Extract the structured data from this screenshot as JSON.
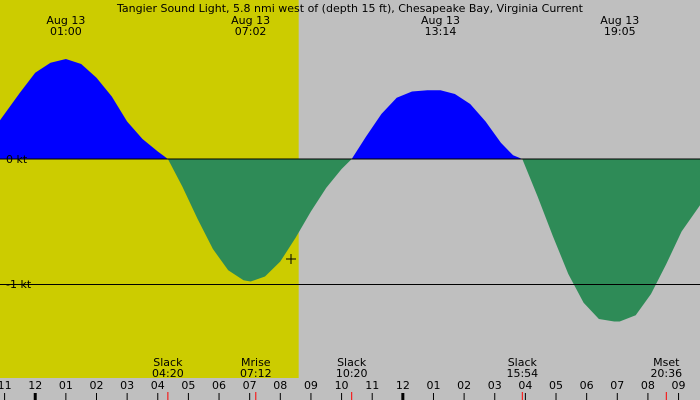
{
  "chart_data": {
    "type": "area",
    "title": "Tangier Sound Light, 5.8 nmi west of (depth 15 ft), Chesapeake Bay, Virginia Current",
    "ylabel": "",
    "xlabel": "",
    "y_tick_labels": [
      {
        "value": 0,
        "label": "0 kt"
      },
      {
        "value": -1,
        "label": "-1 kt"
      }
    ],
    "ylim": [
      -1.6,
      0.8
    ],
    "x_range_hours": [
      10.85,
      33.7
    ],
    "daylight_hours": [
      6.9,
      20.6
    ],
    "x_ticks": [
      {
        "hour": 11,
        "label": "11"
      },
      {
        "hour": 12,
        "label": "12"
      },
      {
        "hour": 13,
        "label": "01"
      },
      {
        "hour": 14,
        "label": "02"
      },
      {
        "hour": 15,
        "label": "03"
      },
      {
        "hour": 16,
        "label": "04"
      },
      {
        "hour": 17,
        "label": "05"
      },
      {
        "hour": 18,
        "label": "06"
      },
      {
        "hour": 19,
        "label": "07"
      },
      {
        "hour": 20,
        "label": "08"
      },
      {
        "hour": 21,
        "label": "09"
      },
      {
        "hour": 22,
        "label": "10"
      },
      {
        "hour": 23,
        "label": "11"
      },
      {
        "hour": 24,
        "label": "12"
      },
      {
        "hour": 25,
        "label": "01"
      },
      {
        "hour": 26,
        "label": "02"
      },
      {
        "hour": 27,
        "label": "03"
      },
      {
        "hour": 28,
        "label": "04"
      },
      {
        "hour": 29,
        "label": "05"
      },
      {
        "hour": 30,
        "label": "06"
      },
      {
        "hour": 31,
        "label": "07"
      },
      {
        "hour": 32,
        "label": "08"
      },
      {
        "hour": 33,
        "label": "09"
      }
    ],
    "extremes": [
      {
        "hour": 13.0,
        "value": 0.8,
        "date": "Aug 13",
        "time": "01:00"
      },
      {
        "hour": 19.03,
        "value": -0.98,
        "date": "Aug 13",
        "time": "07:02"
      },
      {
        "hour": 25.23,
        "value": 0.55,
        "date": "Aug 13",
        "time": "13:14"
      },
      {
        "hour": 31.08,
        "value": -1.3,
        "date": "Aug 13",
        "time": "19:05"
      }
    ],
    "events": [
      {
        "hour": 16.33,
        "label": "Slack",
        "time": "04:20"
      },
      {
        "hour": 19.2,
        "label": "Mrise",
        "time": "07:12"
      },
      {
        "hour": 22.33,
        "label": "Slack",
        "time": "10:20"
      },
      {
        "hour": 27.9,
        "label": "Slack",
        "time": "15:54"
      },
      {
        "hour": 32.6,
        "label": "Mset",
        "time": "20:36"
      }
    ],
    "series": [
      {
        "x": [
          10.85,
          11.5,
          12.0,
          12.5,
          13.0,
          13.5,
          14.0,
          14.5,
          15.0,
          15.5,
          16.0,
          16.33,
          16.8,
          17.3,
          17.8,
          18.3,
          18.8,
          19.03,
          19.5,
          20.0,
          20.5,
          21.0,
          21.5,
          22.0,
          22.33,
          22.8,
          23.3,
          23.8,
          24.3,
          24.8,
          25.23,
          25.7,
          26.2,
          26.7,
          27.2,
          27.6,
          27.9,
          28.4,
          28.9,
          29.4,
          29.9,
          30.4,
          30.9,
          31.08,
          31.6,
          32.1,
          32.6,
          33.1,
          33.7
        ],
        "values": [
          0.31,
          0.53,
          0.69,
          0.77,
          0.8,
          0.76,
          0.65,
          0.5,
          0.3,
          0.16,
          0.06,
          0.0,
          -0.22,
          -0.48,
          -0.72,
          -0.89,
          -0.97,
          -0.98,
          -0.94,
          -0.82,
          -0.63,
          -0.42,
          -0.23,
          -0.08,
          0.0,
          0.18,
          0.36,
          0.49,
          0.54,
          0.55,
          0.55,
          0.52,
          0.44,
          0.3,
          0.13,
          0.03,
          0.0,
          -0.3,
          -0.62,
          -0.92,
          -1.15,
          -1.28,
          -1.3,
          -1.3,
          -1.25,
          -1.08,
          -0.84,
          -0.58,
          -0.37
        ]
      }
    ],
    "colors": {
      "background": "#bfbfbf",
      "daylight": "#cccc00",
      "flood": "#0000ff",
      "ebb": "#2e8b57"
    }
  }
}
